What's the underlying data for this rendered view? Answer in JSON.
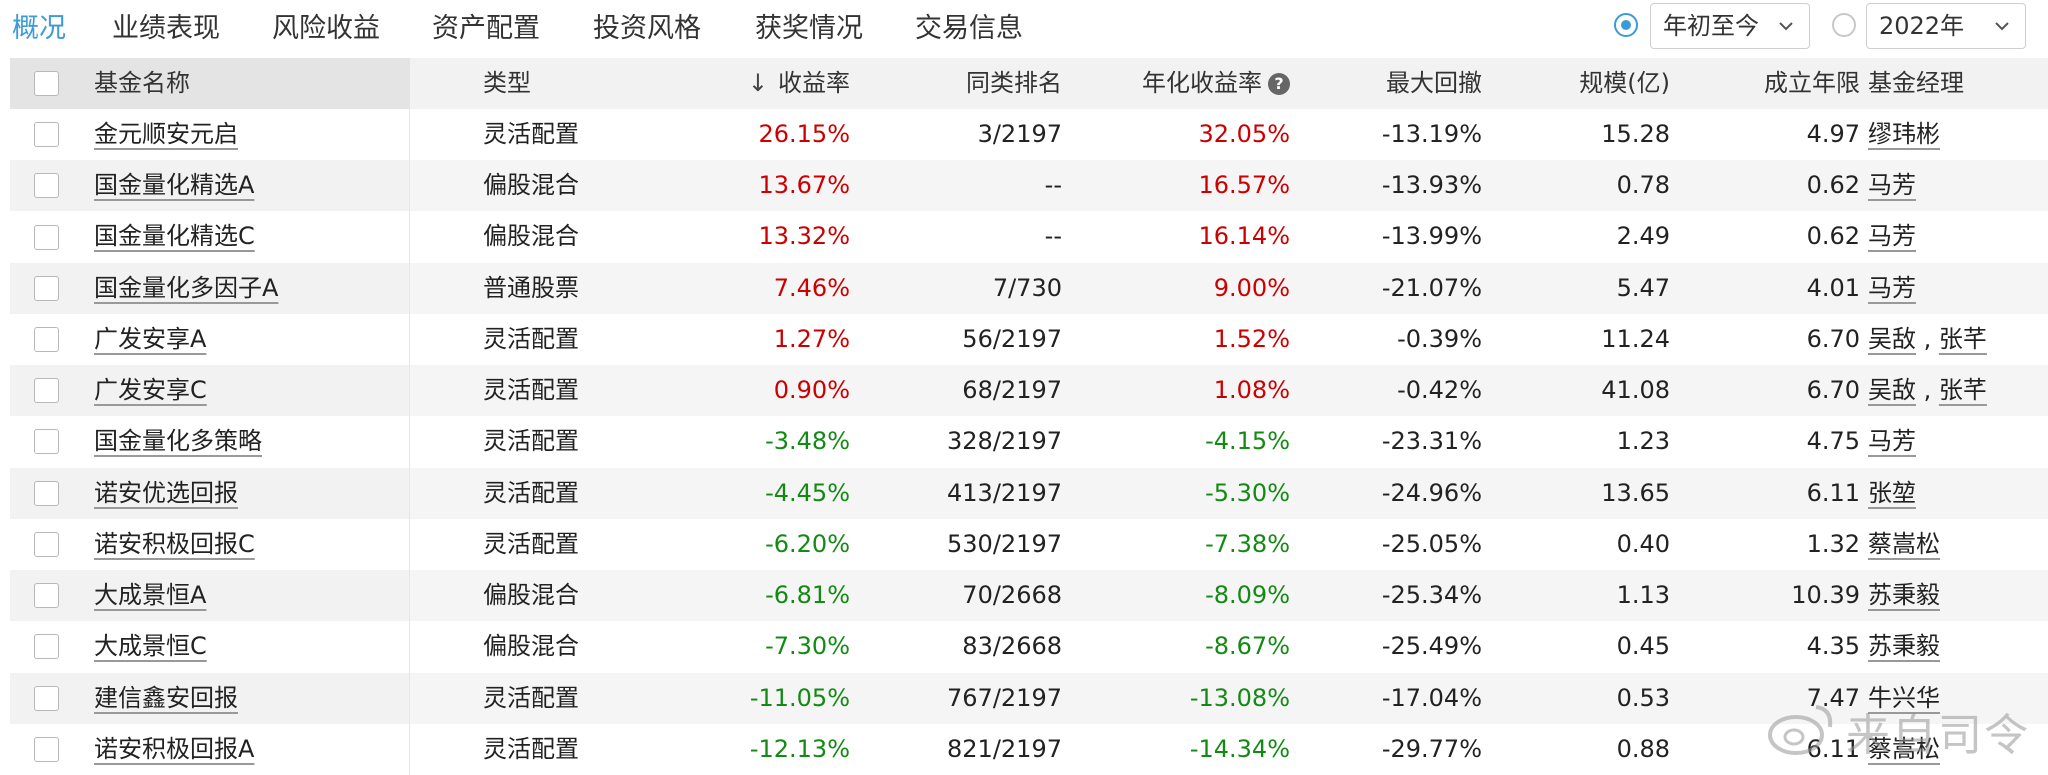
{
  "tabs": [
    "概况",
    "业绩表现",
    "风险收益",
    "资产配置",
    "投资风格",
    "获奖情况",
    "交易信息"
  ],
  "controls": {
    "period_select": "年初至今",
    "year_select": "2022年"
  },
  "table": {
    "headers": {
      "name": "基金名称",
      "type": "类型",
      "return": "收益率",
      "rank": "同类排名",
      "annual": "年化收益率",
      "drawdown": "最大回撤",
      "scale": "规模(亿)",
      "years": "成立年限",
      "manager": "基金经理"
    },
    "rows": [
      {
        "name": "金元顺安元启",
        "type": "灵活配置",
        "return": "26.15%",
        "rank": "3/2197",
        "annual": "32.05%",
        "drawdown": "-13.19%",
        "scale": "15.28",
        "years": "4.97",
        "managers": [
          "缪玮彬"
        ],
        "sign": "up"
      },
      {
        "name": "国金量化精选A",
        "type": "偏股混合",
        "return": "13.67%",
        "rank": "--",
        "annual": "16.57%",
        "drawdown": "-13.93%",
        "scale": "0.78",
        "years": "0.62",
        "managers": [
          "马芳"
        ],
        "sign": "up"
      },
      {
        "name": "国金量化精选C",
        "type": "偏股混合",
        "return": "13.32%",
        "rank": "--",
        "annual": "16.14%",
        "drawdown": "-13.99%",
        "scale": "2.49",
        "years": "0.62",
        "managers": [
          "马芳"
        ],
        "sign": "up"
      },
      {
        "name": "国金量化多因子A",
        "type": "普通股票",
        "return": "7.46%",
        "rank": "7/730",
        "annual": "9.00%",
        "drawdown": "-21.07%",
        "scale": "5.47",
        "years": "4.01",
        "managers": [
          "马芳"
        ],
        "sign": "up"
      },
      {
        "name": "广发安享A",
        "type": "灵活配置",
        "return": "1.27%",
        "rank": "56/2197",
        "annual": "1.52%",
        "drawdown": "-0.39%",
        "scale": "11.24",
        "years": "6.70",
        "managers": [
          "吴敌",
          "张芊"
        ],
        "sign": "up"
      },
      {
        "name": "广发安享C",
        "type": "灵活配置",
        "return": "0.90%",
        "rank": "68/2197",
        "annual": "1.08%",
        "drawdown": "-0.42%",
        "scale": "41.08",
        "years": "6.70",
        "managers": [
          "吴敌",
          "张芊"
        ],
        "sign": "up"
      },
      {
        "name": "国金量化多策略",
        "type": "灵活配置",
        "return": "-3.48%",
        "rank": "328/2197",
        "annual": "-4.15%",
        "drawdown": "-23.31%",
        "scale": "1.23",
        "years": "4.75",
        "managers": [
          "马芳"
        ],
        "sign": "down"
      },
      {
        "name": "诺安优选回报",
        "type": "灵活配置",
        "return": "-4.45%",
        "rank": "413/2197",
        "annual": "-5.30%",
        "drawdown": "-24.96%",
        "scale": "13.65",
        "years": "6.11",
        "managers": [
          "张堃"
        ],
        "sign": "down"
      },
      {
        "name": "诺安积极回报C",
        "type": "灵活配置",
        "return": "-6.20%",
        "rank": "530/2197",
        "annual": "-7.38%",
        "drawdown": "-25.05%",
        "scale": "0.40",
        "years": "1.32",
        "managers": [
          "蔡嵩松"
        ],
        "sign": "down"
      },
      {
        "name": "大成景恒A",
        "type": "偏股混合",
        "return": "-6.81%",
        "rank": "70/2668",
        "annual": "-8.09%",
        "drawdown": "-25.34%",
        "scale": "1.13",
        "years": "10.39",
        "managers": [
          "苏秉毅"
        ],
        "sign": "down"
      },
      {
        "name": "大成景恒C",
        "type": "偏股混合",
        "return": "-7.30%",
        "rank": "83/2668",
        "annual": "-8.67%",
        "drawdown": "-25.49%",
        "scale": "0.45",
        "years": "4.35",
        "managers": [
          "苏秉毅"
        ],
        "sign": "down"
      },
      {
        "name": "建信鑫安回报",
        "type": "灵活配置",
        "return": "-11.05%",
        "rank": "767/2197",
        "annual": "-13.08%",
        "drawdown": "-17.04%",
        "scale": "0.53",
        "years": "7.47",
        "managers": [
          "牛兴华"
        ],
        "sign": "down"
      },
      {
        "name": "诺安积极回报A",
        "type": "灵活配置",
        "return": "-12.13%",
        "rank": "821/2197",
        "annual": "-14.34%",
        "drawdown": "-29.77%",
        "scale": "0.88",
        "years": "6.11",
        "managers": [
          "蔡嵩松"
        ],
        "sign": "down"
      }
    ]
  },
  "watermark": "来自司令",
  "colors": {
    "accent": "#3a9bd8",
    "positive": "#cc0000",
    "negative": "#138a13"
  },
  "icons": [
    "radio-selected-icon",
    "radio-unselected-icon",
    "chevron-down-icon",
    "sort-down-icon",
    "help-icon",
    "checkbox-icon"
  ]
}
